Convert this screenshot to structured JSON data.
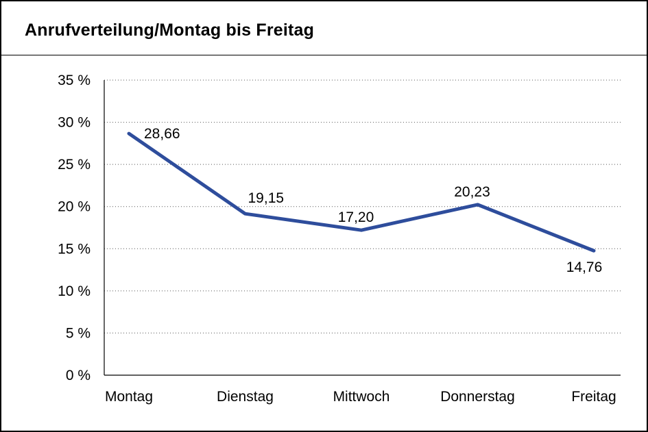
{
  "chart_data": {
    "type": "line",
    "title": "Anrufverteilung/Montag bis Freitag",
    "categories": [
      "Montag",
      "Dienstag",
      "Mittwoch",
      "Donnerstag",
      "Freitag"
    ],
    "values": [
      28.66,
      19.15,
      17.2,
      20.23,
      14.76
    ],
    "point_labels": [
      "28,66",
      "19,15",
      "17,20",
      "20,23",
      "14,76"
    ],
    "y_tick_labels": [
      "0 %",
      "5 %",
      "10 %",
      "15 %",
      "20 %",
      "25 %",
      "30 %",
      "35 %"
    ],
    "ylim": [
      0,
      35
    ],
    "y_tick_step": 5,
    "line_color": "#2E4D9C",
    "grid": "dotted-horizontal",
    "legend": "none",
    "xlabel": "",
    "ylabel": ""
  }
}
